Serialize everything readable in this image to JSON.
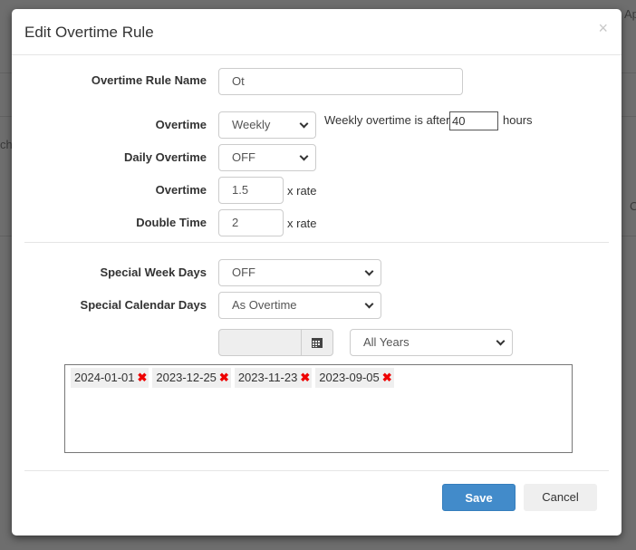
{
  "background": {
    "fragment_right": "Ap",
    "fragment_left": "chi",
    "fragment_right2": "C"
  },
  "modal": {
    "title": "Edit Overtime Rule",
    "close_label": "×",
    "fields": {
      "rule_name": {
        "label": "Overtime Rule Name",
        "value": "Ot"
      },
      "overtime_mode": {
        "label": "Overtime",
        "value": "Weekly",
        "after_text": "Weekly overtime is after",
        "hours_value": "40",
        "hours_suffix": "hours"
      },
      "daily_overtime": {
        "label": "Daily Overtime",
        "value": "OFF"
      },
      "overtime_rate": {
        "label": "Overtime",
        "value": "1.5",
        "suffix": "x rate"
      },
      "double_time": {
        "label": "Double Time",
        "value": "2",
        "suffix": "x rate"
      },
      "special_week_days": {
        "label": "Special Week Days",
        "value": "OFF"
      },
      "special_calendar_days": {
        "label": "Special Calendar Days",
        "value": "As Overtime"
      },
      "date_input": {
        "value": ""
      },
      "year_filter": {
        "value": "All Years"
      }
    },
    "dates": [
      "2024-01-01",
      "2023-12-25",
      "2023-11-23",
      "2023-09-05"
    ],
    "remove_icon": "✖",
    "save_label": "Save",
    "cancel_label": "Cancel",
    "colors": {
      "primary": "#428bca",
      "remove": "#e00000"
    }
  }
}
